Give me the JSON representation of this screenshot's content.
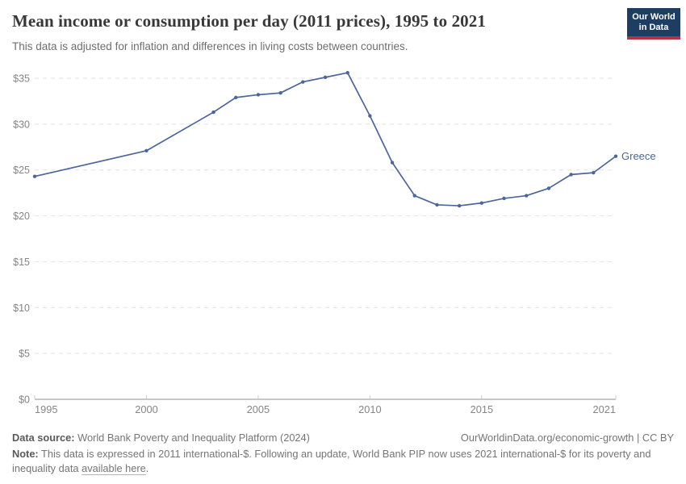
{
  "header": {
    "title": "Mean income or consumption per day (2011 prices), 1995 to 2021",
    "subtitle": "This data is adjusted for inflation and differences in living costs between countries."
  },
  "logo": {
    "line1": "Our World",
    "line2": "in Data",
    "bg_color": "#1d3d63",
    "bar_color": "#b3333e"
  },
  "chart_data": {
    "type": "line",
    "title": "Mean income or consumption per day (2011 prices), 1995 to 2021",
    "xlabel": "",
    "ylabel": "",
    "xlim": [
      1995,
      2021
    ],
    "ylim": [
      0,
      35
    ],
    "x_ticks": [
      1995,
      2000,
      2005,
      2010,
      2015,
      2021
    ],
    "y_ticks": [
      0,
      5,
      10,
      15,
      20,
      25,
      30,
      35
    ],
    "y_tick_prefix": "$",
    "grid": "dashed-horizontal",
    "legend_position": "end-of-line-label",
    "series": [
      {
        "name": "Greece",
        "color": "#4c669b",
        "points": [
          [
            1995,
            24.3
          ],
          [
            2000,
            27.1
          ],
          [
            2003,
            31.3
          ],
          [
            2004,
            32.9
          ],
          [
            2005,
            33.2
          ],
          [
            2006,
            33.4
          ],
          [
            2007,
            34.6
          ],
          [
            2008,
            35.1
          ],
          [
            2009,
            35.6
          ],
          [
            2010,
            30.9
          ],
          [
            2011,
            25.8
          ],
          [
            2012,
            22.2
          ],
          [
            2013,
            21.2
          ],
          [
            2014,
            21.1
          ],
          [
            2015,
            21.4
          ],
          [
            2016,
            21.9
          ],
          [
            2017,
            22.2
          ],
          [
            2018,
            23.0
          ],
          [
            2019,
            24.5
          ],
          [
            2020,
            24.7
          ],
          [
            2021,
            26.5
          ]
        ]
      }
    ]
  },
  "footer": {
    "source_label": "Data source:",
    "source_text": "World Bank Poverty and Inequality Platform (2024)",
    "url": "OurWorldinData.org/economic-growth",
    "separator": "|",
    "license": "CC BY",
    "note_label": "Note:",
    "note_text_1": "This data is expressed in 2011 international-$. Following an update, World Bank PIP now uses 2021 international-$ for its poverty and inequality data",
    "note_link": "available here",
    "note_text_2": "."
  },
  "colors": {
    "line": "#4c669b",
    "grid": "#e2e2e2",
    "axis": "#8f8f8f",
    "tick": "#cccccc",
    "axis_text": "#858585",
    "title_text": "#383838"
  }
}
